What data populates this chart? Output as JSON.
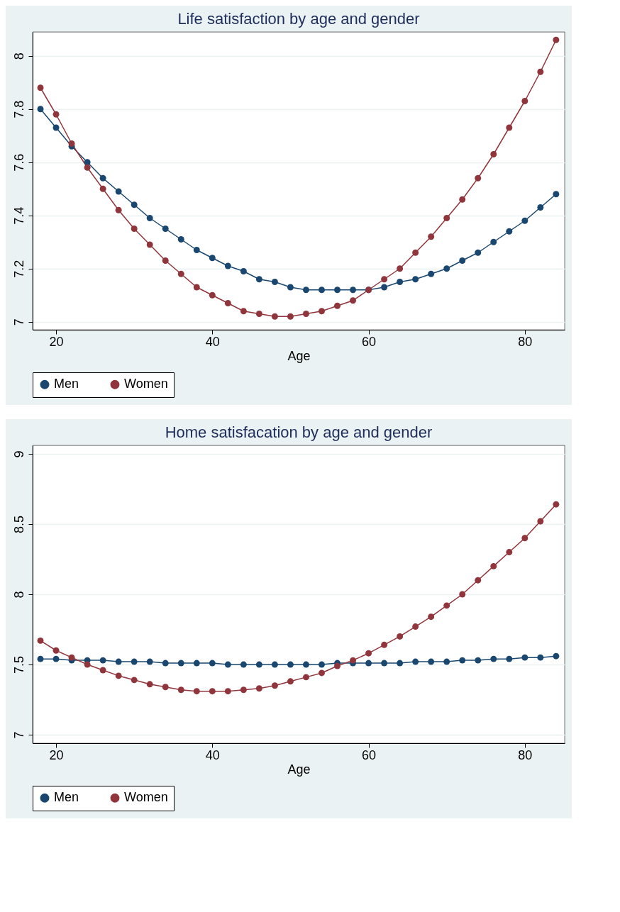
{
  "chart_data": [
    {
      "type": "line",
      "title": "Life satisfaction by age and gender",
      "xlabel": "Age",
      "x": [
        18,
        20,
        22,
        24,
        26,
        28,
        30,
        32,
        34,
        36,
        38,
        40,
        42,
        44,
        46,
        48,
        50,
        52,
        54,
        56,
        58,
        60,
        62,
        64,
        66,
        68,
        70,
        72,
        74,
        76,
        78,
        80,
        82,
        84
      ],
      "xlim": [
        17,
        85.1
      ],
      "xticks": [
        20,
        40,
        60,
        80
      ],
      "ylim": [
        6.97,
        8.09
      ],
      "yticks": [
        7,
        7.2,
        7.4,
        7.6,
        7.8,
        8
      ],
      "grid": "y",
      "legend": "bottom",
      "marker": "circle",
      "line_style": "solid",
      "series": [
        {
          "name": "Men",
          "color": "#1a476f",
          "values": [
            7.8,
            7.73,
            7.66,
            7.6,
            7.54,
            7.49,
            7.44,
            7.39,
            7.35,
            7.31,
            7.27,
            7.24,
            7.21,
            7.19,
            7.16,
            7.15,
            7.13,
            7.12,
            7.12,
            7.12,
            7.12,
            7.12,
            7.13,
            7.15,
            7.16,
            7.18,
            7.2,
            7.23,
            7.26,
            7.3,
            7.34,
            7.38,
            7.43,
            7.48
          ]
        },
        {
          "name": "Women",
          "color": "#90353b",
          "values": [
            7.88,
            7.78,
            7.67,
            7.58,
            7.5,
            7.42,
            7.35,
            7.29,
            7.23,
            7.18,
            7.13,
            7.1,
            7.07,
            7.04,
            7.03,
            7.02,
            7.02,
            7.03,
            7.04,
            7.06,
            7.08,
            7.12,
            7.16,
            7.2,
            7.26,
            7.32,
            7.39,
            7.46,
            7.54,
            7.63,
            7.73,
            7.83,
            7.94,
            8.06
          ]
        }
      ]
    },
    {
      "type": "line",
      "title": "Home satisfacation by age and gender",
      "xlabel": "Age",
      "x": [
        18,
        20,
        22,
        24,
        26,
        28,
        30,
        32,
        34,
        36,
        38,
        40,
        42,
        44,
        46,
        48,
        50,
        52,
        54,
        56,
        58,
        60,
        62,
        64,
        66,
        68,
        70,
        72,
        74,
        76,
        78,
        80,
        82,
        84
      ],
      "xlim": [
        17,
        85.1
      ],
      "xticks": [
        20,
        40,
        60,
        80
      ],
      "ylim": [
        6.94,
        9.06
      ],
      "yticks": [
        7,
        7.5,
        8,
        8.5,
        9
      ],
      "grid": "y",
      "legend": "bottom",
      "marker": "circle",
      "line_style": "solid",
      "series": [
        {
          "name": "Men",
          "color": "#1a476f",
          "values": [
            7.54,
            7.54,
            7.53,
            7.53,
            7.53,
            7.52,
            7.52,
            7.52,
            7.51,
            7.51,
            7.51,
            7.51,
            7.5,
            7.5,
            7.5,
            7.5,
            7.5,
            7.5,
            7.5,
            7.51,
            7.51,
            7.51,
            7.51,
            7.51,
            7.52,
            7.52,
            7.52,
            7.53,
            7.53,
            7.54,
            7.54,
            7.55,
            7.55,
            7.56
          ]
        },
        {
          "name": "Women",
          "color": "#90353b",
          "values": [
            7.67,
            7.6,
            7.55,
            7.5,
            7.46,
            7.42,
            7.39,
            7.36,
            7.34,
            7.32,
            7.31,
            7.31,
            7.31,
            7.32,
            7.33,
            7.35,
            7.38,
            7.41,
            7.44,
            7.49,
            7.53,
            7.58,
            7.64,
            7.7,
            7.77,
            7.84,
            7.92,
            8.0,
            8.1,
            8.2,
            8.3,
            8.4,
            8.52,
            8.64
          ]
        }
      ]
    }
  ]
}
